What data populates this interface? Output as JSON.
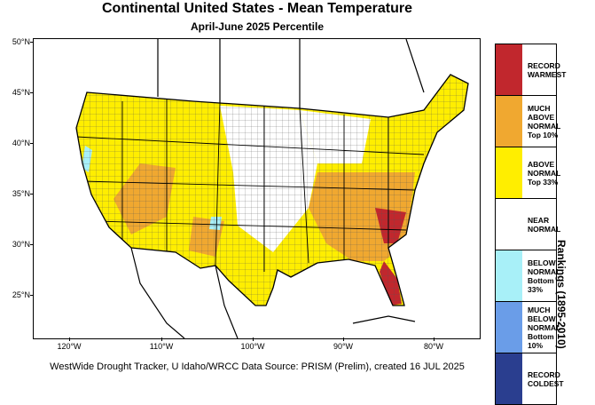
{
  "header": {
    "title": "Continental United States - Mean Temperature",
    "subtitle": "April-June 2025 Percentile"
  },
  "axes": {
    "y_ticks": [
      "50°N",
      "45°N",
      "40°N",
      "35°N",
      "30°N",
      "25°N"
    ],
    "x_ticks": [
      "120°W",
      "110°W",
      "100°W",
      "90°W",
      "80°W"
    ]
  },
  "legend": {
    "title": "Rankings (1895-2010)",
    "items": [
      {
        "label": "RECORD\nWARMEST",
        "color": "#c1272d"
      },
      {
        "label": "MUCH\nABOVE\nNORMAL\nTop 10%",
        "color": "#f0a830"
      },
      {
        "label": "ABOVE\nNORMAL\nTop 33%",
        "color": "#ffee00"
      },
      {
        "label": "NEAR\nNORMAL",
        "color": "#ffffff"
      },
      {
        "label": "BELOW\nNORMAL\nBottom 33%",
        "color": "#a8f0f8"
      },
      {
        "label": "MUCH\nBELOW\nNORMAL\nBottom 10%",
        "color": "#6a9de8"
      },
      {
        "label": "RECORD\nCOLDEST",
        "color": "#2a3e8f"
      }
    ]
  },
  "footer": "WestWide Drought Tracker, U Idaho/WRCC Data Source: PRISM (Prelim), created 16 JUL 2025"
}
